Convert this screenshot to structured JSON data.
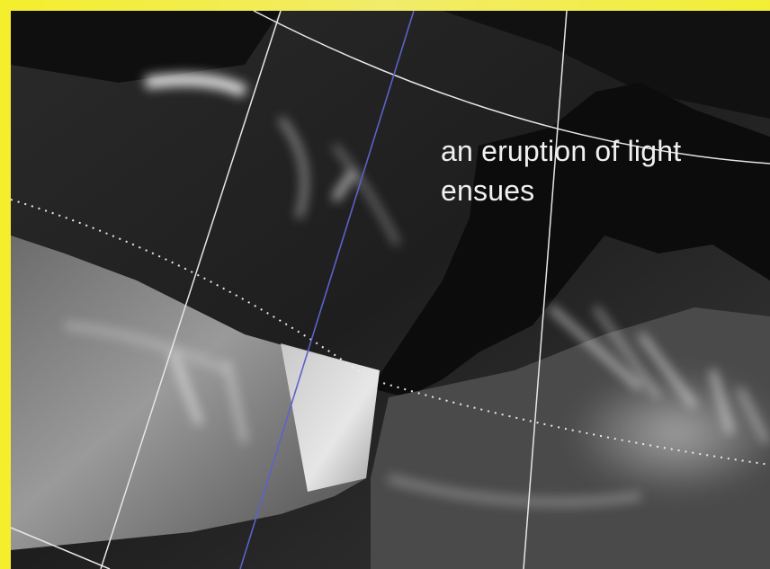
{
  "caption": {
    "line1": "an eruption of light",
    "line2": "ensues"
  },
  "colors": {
    "frame": "#f2ec3a",
    "grid_line": "#e6e6e6",
    "meridian_accent": "#5b63c9",
    "caption_text": "#f0f0f0"
  }
}
